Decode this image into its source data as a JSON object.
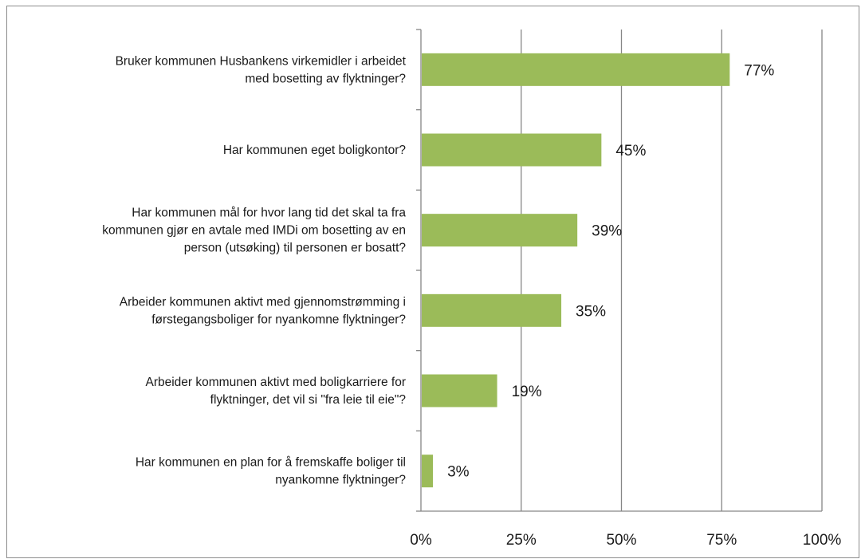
{
  "chart_data": {
    "type": "bar",
    "orientation": "horizontal",
    "categories": [
      [
        "Bruker kommunen Husbankens virkemidler i arbeidet",
        "med bosetting av flyktninger?"
      ],
      [
        "Har kommunen eget boligkontor?"
      ],
      [
        "Har kommunen mål for hvor lang tid det skal ta fra",
        "kommunen gjør en avtale med IMDi om bosetting av en",
        "person (utsøking) til personen er bosatt?"
      ],
      [
        "Arbeider kommunen aktivt med gjennomstrømming i",
        "førstegangsboliger for nyankomne flyktninger?"
      ],
      [
        "Arbeider kommunen aktivt med boligkarriere for",
        "flyktninger, det vil si \"fra leie til eie\"?"
      ],
      [
        "Har kommunen en plan for å fremskaffe boliger til",
        "nyankomne flyktninger?"
      ]
    ],
    "values": [
      77,
      45,
      39,
      35,
      19,
      3
    ],
    "data_labels": [
      "77%",
      "45%",
      "39%",
      "35%",
      "19%",
      "3%"
    ],
    "xlim": [
      0,
      100
    ],
    "x_ticks": [
      0,
      25,
      50,
      75,
      100
    ],
    "x_tick_labels": [
      "0%",
      "25%",
      "50%",
      "75%",
      "100%"
    ],
    "grid": "vertical",
    "legend": "none",
    "colors": {
      "bar": "#9bbb59",
      "grid": "#868686",
      "axis": "#868686",
      "frame": "#8c8c8c",
      "text": "#1a1a1a"
    }
  }
}
